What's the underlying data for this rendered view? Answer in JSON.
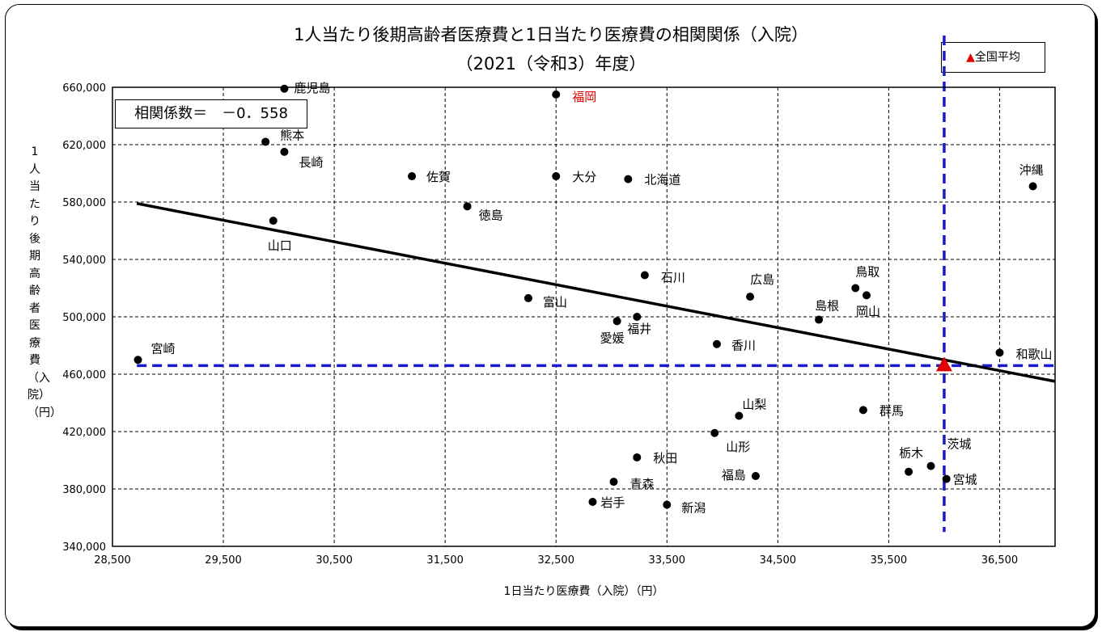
{
  "chart_data": {
    "type": "scatter",
    "title": "1人当たり後期高齢者医療費と1日当たり医療費の相関関係（入院）",
    "subtitle": "（2021（令和3）年度）",
    "xlabel": "1日当たり医療費（入院）（円）",
    "ylabel": "1人当たり後期高齢者医療費（入院）（円）",
    "xlim": [
      28500,
      37000
    ],
    "ylim": [
      340000,
      660000
    ],
    "x_ticks": [
      28500,
      29500,
      30500,
      31500,
      32500,
      33500,
      34500,
      35500,
      36500
    ],
    "x_tick_labels": [
      "28,500",
      "29,500",
      "30,500",
      "31,500",
      "32,500",
      "33,500",
      "34,500",
      "35,500",
      "36,500"
    ],
    "y_ticks": [
      340000,
      380000,
      420000,
      460000,
      500000,
      540000,
      580000,
      620000,
      660000
    ],
    "y_tick_labels": [
      "340,000",
      "380,000",
      "420,000",
      "460,000",
      "500,000",
      "540,000",
      "580,000",
      "620,000",
      "660,000"
    ],
    "grid": true,
    "correlation_text": "相関係数＝　－0．558",
    "legend": {
      "label": "全国平均",
      "marker_color": "#e00000",
      "placement": "top-right"
    },
    "average": {
      "x": 36000,
      "y": 466000
    },
    "trendline": {
      "x": [
        28720,
        37000
      ],
      "y": [
        579000,
        455000
      ]
    },
    "colors": {
      "point": "#000000",
      "highlight": "#e00000",
      "average_lines": "#1a1acc",
      "trendline": "#000000"
    },
    "points": [
      {
        "name": "鹿児島",
        "x": 30050,
        "y": 659000,
        "highlight": false
      },
      {
        "name": "福岡",
        "x": 32500,
        "y": 655000,
        "highlight": true
      },
      {
        "name": "熊本",
        "x": 29880,
        "y": 622000,
        "highlight": false
      },
      {
        "name": "長崎",
        "x": 30050,
        "y": 615000,
        "highlight": false
      },
      {
        "name": "佐賀",
        "x": 31200,
        "y": 598000,
        "highlight": false
      },
      {
        "name": "大分",
        "x": 32500,
        "y": 598000,
        "highlight": false
      },
      {
        "name": "北海道",
        "x": 33150,
        "y": 596000,
        "highlight": false
      },
      {
        "name": "沖縄",
        "x": 36800,
        "y": 591000,
        "highlight": false
      },
      {
        "name": "徳島",
        "x": 31700,
        "y": 577000,
        "highlight": false
      },
      {
        "name": "山口",
        "x": 29950,
        "y": 567000,
        "highlight": false
      },
      {
        "name": "石川",
        "x": 33300,
        "y": 529000,
        "highlight": false
      },
      {
        "name": "鳥取",
        "x": 35200,
        "y": 520000,
        "highlight": false
      },
      {
        "name": "岡山",
        "x": 35300,
        "y": 515000,
        "highlight": false
      },
      {
        "name": "広島",
        "x": 34250,
        "y": 514000,
        "highlight": false
      },
      {
        "name": "富山",
        "x": 32250,
        "y": 513000,
        "highlight": false
      },
      {
        "name": "福井",
        "x": 33230,
        "y": 500000,
        "highlight": false
      },
      {
        "name": "島根",
        "x": 34870,
        "y": 498000,
        "highlight": false
      },
      {
        "name": "愛媛",
        "x": 33050,
        "y": 497000,
        "highlight": false
      },
      {
        "name": "香川",
        "x": 33950,
        "y": 481000,
        "highlight": false
      },
      {
        "name": "和歌山",
        "x": 36500,
        "y": 475000,
        "highlight": false
      },
      {
        "name": "宮崎",
        "x": 28730,
        "y": 470000,
        "highlight": false
      },
      {
        "name": "群馬",
        "x": 35270,
        "y": 435000,
        "highlight": false
      },
      {
        "name": "山梨",
        "x": 34150,
        "y": 431000,
        "highlight": false
      },
      {
        "name": "山形",
        "x": 33930,
        "y": 419000,
        "highlight": false
      },
      {
        "name": "秋田",
        "x": 33230,
        "y": 402000,
        "highlight": false
      },
      {
        "name": "茨城",
        "x": 35880,
        "y": 396000,
        "highlight": false
      },
      {
        "name": "栃木",
        "x": 35680,
        "y": 392000,
        "highlight": false
      },
      {
        "name": "福島",
        "x": 34300,
        "y": 389000,
        "highlight": false
      },
      {
        "name": "宮城",
        "x": 36020,
        "y": 387000,
        "highlight": false
      },
      {
        "name": "青森",
        "x": 33020,
        "y": 385000,
        "highlight": false
      },
      {
        "name": "岩手",
        "x": 32830,
        "y": 371000,
        "highlight": false
      },
      {
        "name": "新潟",
        "x": 33500,
        "y": 369000,
        "highlight": false
      }
    ]
  }
}
